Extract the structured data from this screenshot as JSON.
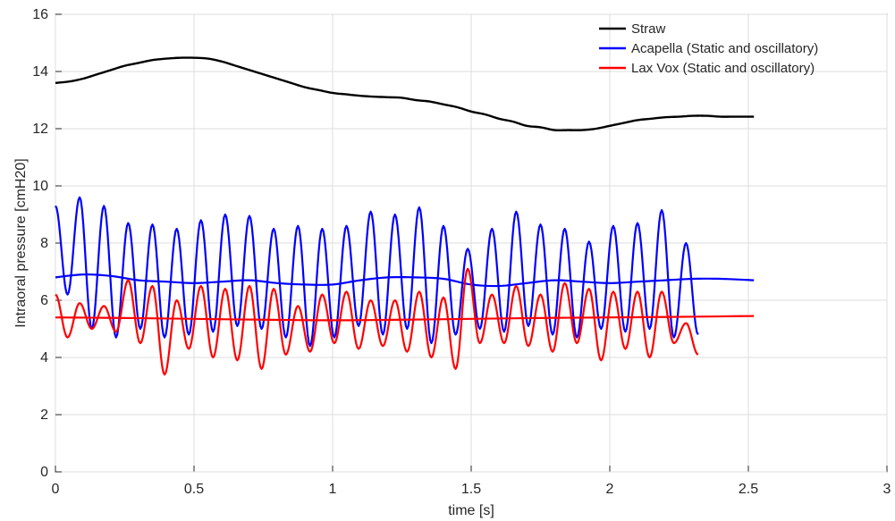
{
  "chart_data": {
    "type": "line",
    "title": "",
    "xlabel": "time [s]",
    "ylabel": "Intraoral pressure [cmH20]",
    "xlim": [
      0,
      3
    ],
    "ylim": [
      0,
      16
    ],
    "xticks": [
      0,
      0.5,
      1,
      1.5,
      2,
      2.5,
      3
    ],
    "xtick_labels": [
      "0",
      "0.5",
      "1",
      "1.5",
      "2",
      "2.5",
      "3"
    ],
    "yticks": [
      0,
      2,
      4,
      6,
      8,
      10,
      12,
      14,
      16
    ],
    "ytick_labels": [
      "0",
      "2",
      "4",
      "6",
      "8",
      "10",
      "12",
      "14",
      "16"
    ],
    "grid": true,
    "legend_position": "top-right",
    "series": [
      {
        "name": "Straw",
        "color": "#000000",
        "x": [
          0.0,
          0.05,
          0.1,
          0.15,
          0.2,
          0.25,
          0.3,
          0.35,
          0.4,
          0.45,
          0.5,
          0.55,
          0.6,
          0.65,
          0.7,
          0.75,
          0.8,
          0.85,
          0.9,
          0.95,
          1.0,
          1.05,
          1.1,
          1.15,
          1.2,
          1.25,
          1.3,
          1.35,
          1.4,
          1.45,
          1.5,
          1.55,
          1.6,
          1.65,
          1.7,
          1.75,
          1.8,
          1.85,
          1.9,
          1.95,
          2.0,
          2.05,
          2.1,
          2.15,
          2.2,
          2.25,
          2.3,
          2.35,
          2.4,
          2.45,
          2.5,
          2.52
        ],
        "y": [
          13.6,
          13.65,
          13.75,
          13.9,
          14.05,
          14.2,
          14.3,
          14.4,
          14.45,
          14.48,
          14.48,
          14.45,
          14.35,
          14.2,
          14.05,
          13.9,
          13.75,
          13.6,
          13.45,
          13.35,
          13.25,
          13.2,
          13.15,
          13.12,
          13.1,
          13.08,
          13.0,
          12.95,
          12.85,
          12.75,
          12.6,
          12.5,
          12.35,
          12.25,
          12.1,
          12.05,
          11.95,
          11.95,
          11.95,
          12.0,
          12.1,
          12.2,
          12.3,
          12.35,
          12.4,
          12.42,
          12.45,
          12.45,
          12.42,
          12.42,
          12.42,
          12.42
        ]
      },
      {
        "name": "Acapella (Static and oscillatory)",
        "color": "#0000ff",
        "oscillation": {
          "start_x": 0.0,
          "end_x": 2.52,
          "period": 0.0875,
          "peaks": [
            9.3,
            9.6,
            9.3,
            8.7,
            8.65,
            8.5,
            8.8,
            9.0,
            8.95,
            8.5,
            8.6,
            8.5,
            8.6,
            9.1,
            9.0,
            9.25,
            8.6,
            7.8,
            8.5,
            9.1,
            8.65,
            8.5,
            8.05,
            8.6,
            8.7,
            9.15,
            8.0
          ],
          "troughs": [
            6.2,
            5.0,
            4.7,
            5.0,
            4.7,
            4.8,
            4.9,
            5.1,
            5.0,
            4.7,
            4.4,
            4.7,
            5.1,
            4.8,
            5.0,
            4.5,
            4.8,
            5.0,
            4.9,
            5.1,
            4.8,
            4.7,
            5.0,
            4.9,
            5.0,
            4.7,
            4.8
          ]
        },
        "mean_x": [
          0.0,
          0.1,
          0.2,
          0.3,
          0.4,
          0.5,
          0.6,
          0.7,
          0.8,
          0.9,
          1.0,
          1.1,
          1.2,
          1.3,
          1.4,
          1.5,
          1.6,
          1.7,
          1.8,
          1.9,
          2.0,
          2.1,
          2.2,
          2.3,
          2.4,
          2.52
        ],
        "mean_y": [
          6.8,
          6.9,
          6.85,
          6.7,
          6.65,
          6.6,
          6.65,
          6.7,
          6.6,
          6.55,
          6.55,
          6.7,
          6.8,
          6.8,
          6.75,
          6.55,
          6.5,
          6.6,
          6.7,
          6.65,
          6.6,
          6.65,
          6.7,
          6.75,
          6.75,
          6.7
        ]
      },
      {
        "name": "Lax Vox (Static and oscillatory)",
        "color": "#ff0000",
        "oscillation": {
          "start_x": 0.0,
          "end_x": 2.52,
          "period": 0.0875,
          "peaks": [
            6.2,
            5.9,
            5.8,
            6.7,
            6.5,
            6.0,
            6.5,
            6.4,
            6.5,
            6.4,
            5.8,
            6.2,
            6.3,
            6.0,
            6.0,
            6.3,
            6.1,
            7.1,
            6.2,
            6.5,
            6.2,
            6.6,
            6.4,
            6.3,
            6.3,
            6.3,
            5.2
          ],
          "troughs": [
            4.7,
            5.0,
            4.9,
            4.5,
            3.4,
            4.3,
            4.0,
            3.9,
            3.6,
            4.1,
            4.2,
            4.5,
            4.3,
            4.4,
            4.2,
            4.0,
            3.6,
            4.5,
            4.5,
            4.4,
            4.2,
            4.5,
            3.9,
            4.3,
            4.0,
            4.5,
            4.1
          ]
        },
        "mean_x": [
          0.0,
          0.25,
          0.5,
          0.75,
          1.0,
          1.25,
          1.5,
          1.75,
          2.0,
          2.25,
          2.52
        ],
        "mean_y": [
          5.4,
          5.38,
          5.35,
          5.32,
          5.3,
          5.32,
          5.35,
          5.38,
          5.4,
          5.42,
          5.45
        ]
      }
    ]
  }
}
